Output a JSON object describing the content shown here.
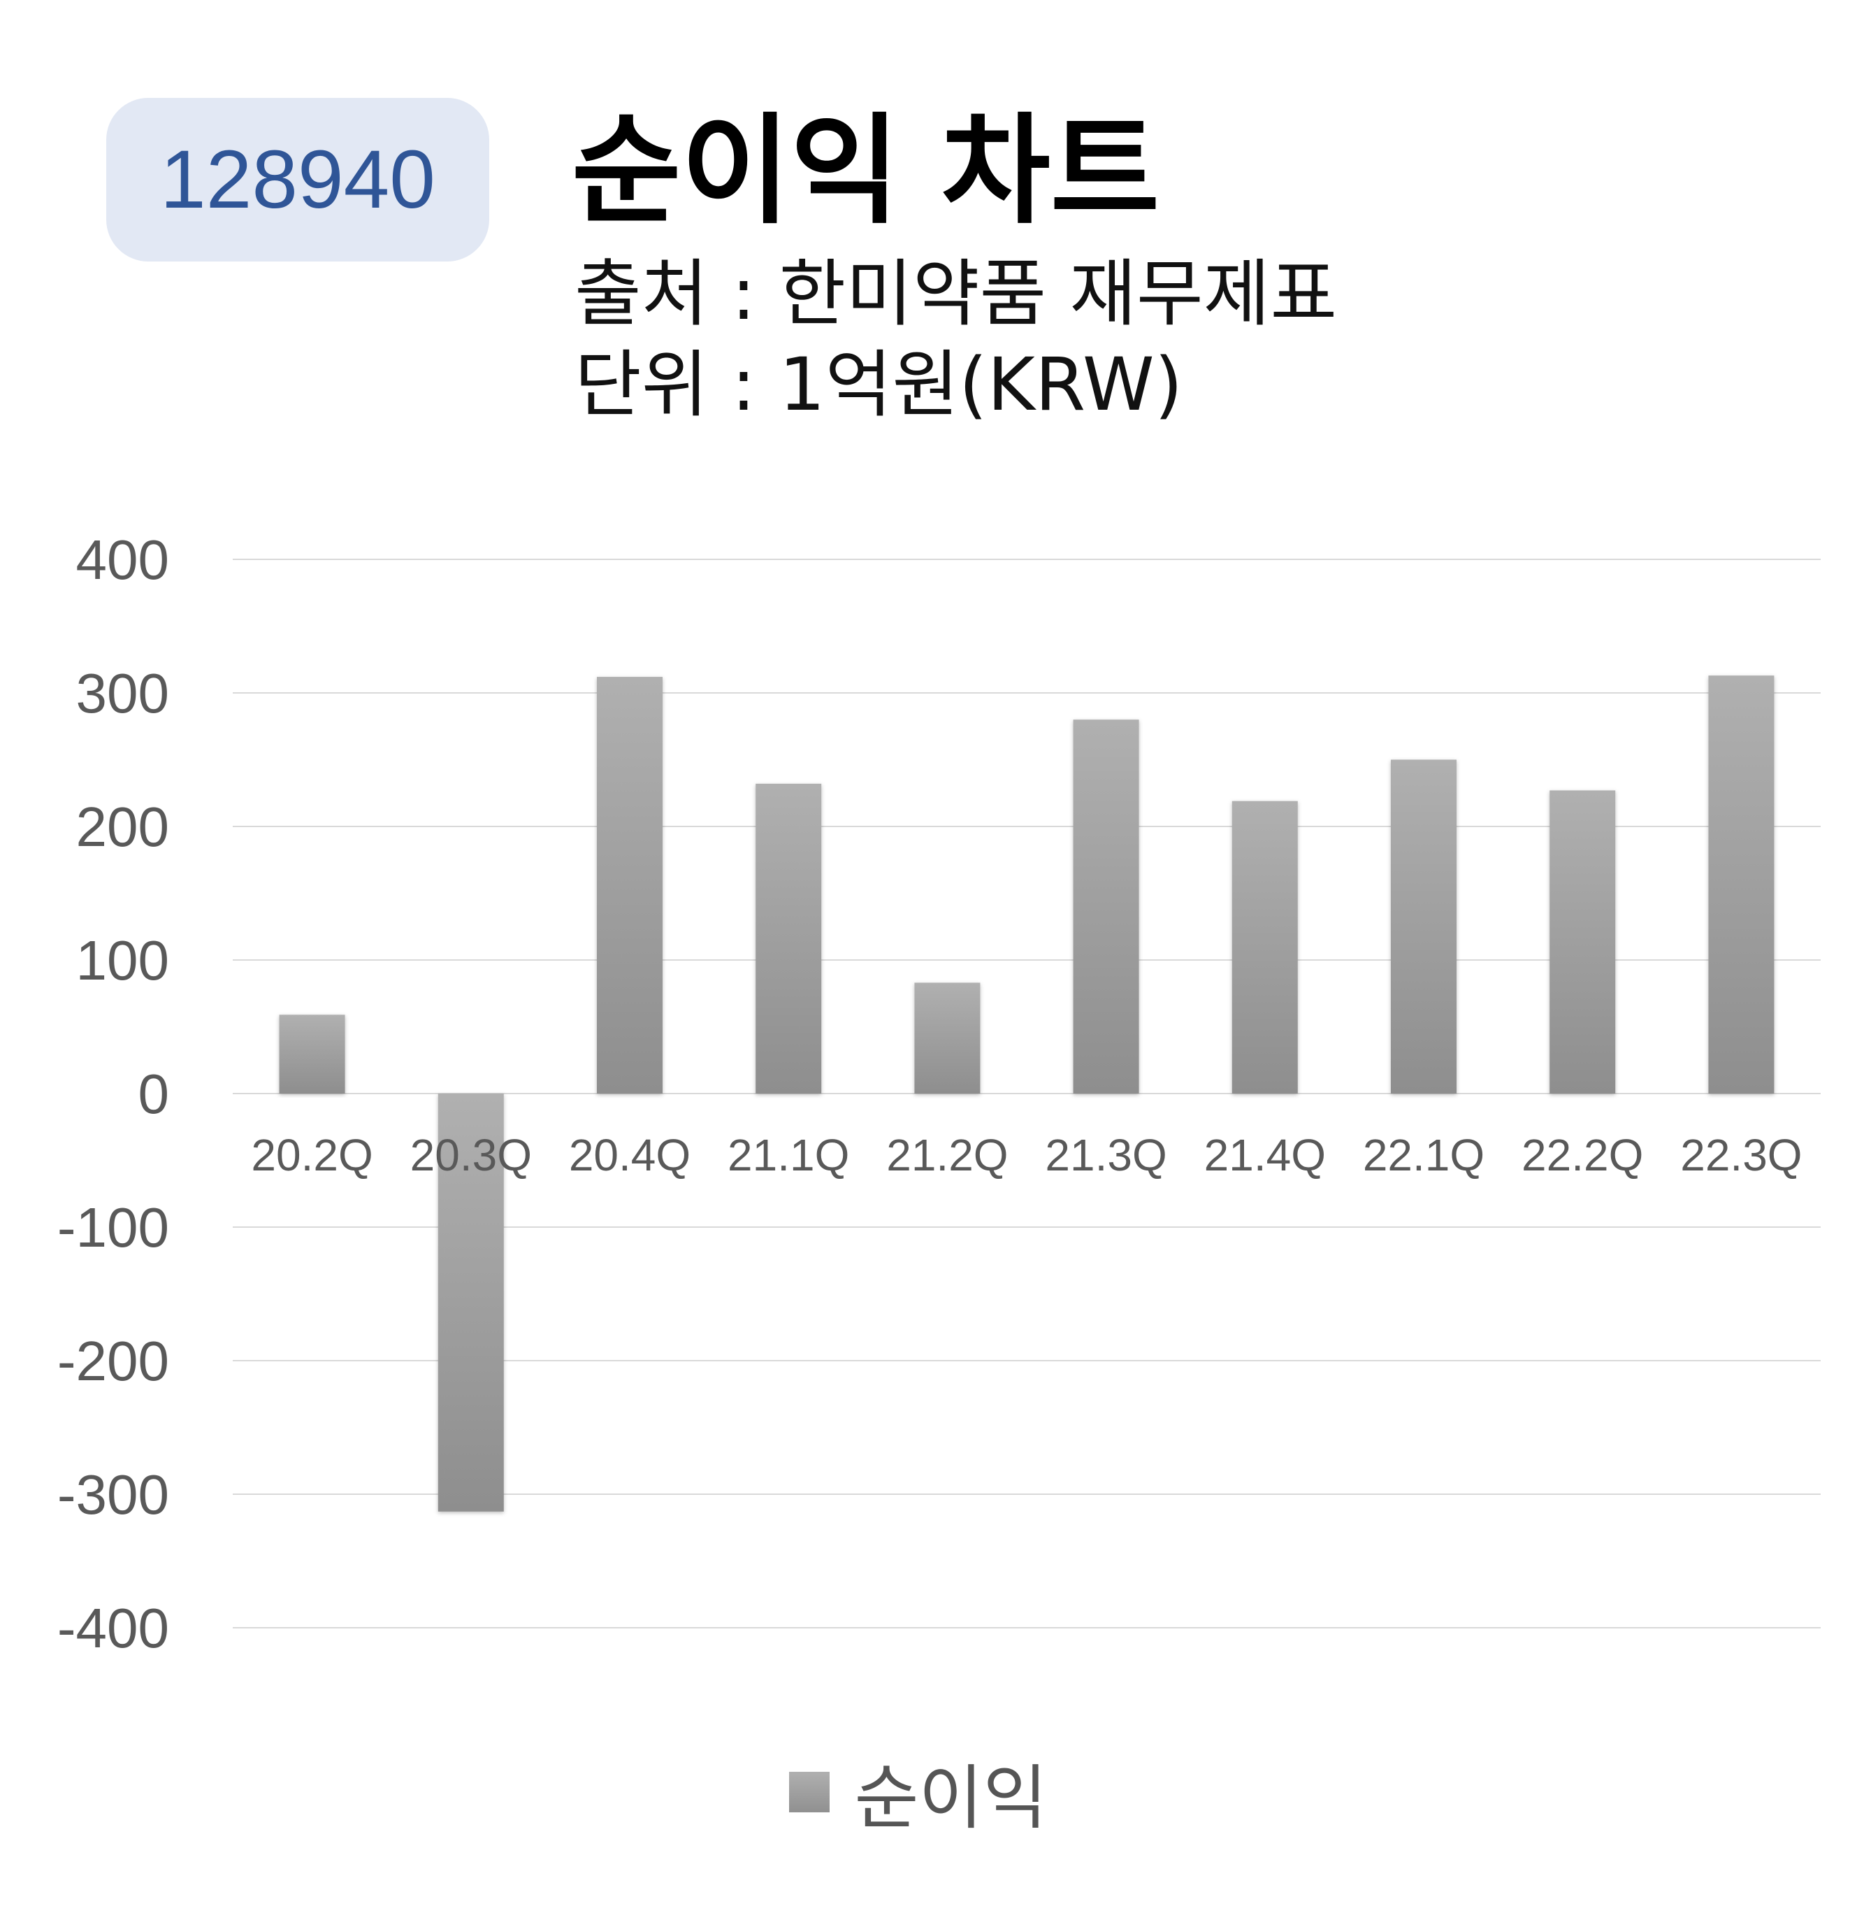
{
  "header": {
    "stock_code": "128940",
    "title": "순이익 차트",
    "source": "출처 : 한미약품 재무제표",
    "unit": "단위 : 1억원(KRW)"
  },
  "colors": {
    "badge_bg": "#e2e8f4",
    "badge_text": "#2f5597",
    "bar_top": "#b0b0b0",
    "bar_bottom": "#8e8e8e",
    "grid": "#d9d9d9",
    "tick_text": "#595959"
  },
  "chart_data": {
    "type": "bar",
    "categories": [
      "20.2Q",
      "20.3Q",
      "20.4Q",
      "21.1Q",
      "21.2Q",
      "21.3Q",
      "21.4Q",
      "22.1Q",
      "22.2Q",
      "22.3Q"
    ],
    "series": [
      {
        "name": "순이익",
        "values": [
          59,
          -313,
          312,
          232,
          83,
          280,
          219,
          250,
          227,
          313
        ]
      }
    ],
    "y_ticks": [
      400,
      300,
      200,
      100,
      0,
      -100,
      -200,
      -300,
      -400
    ],
    "ylim": [
      -400,
      400
    ],
    "grid": true,
    "legend_position": "bottom"
  }
}
